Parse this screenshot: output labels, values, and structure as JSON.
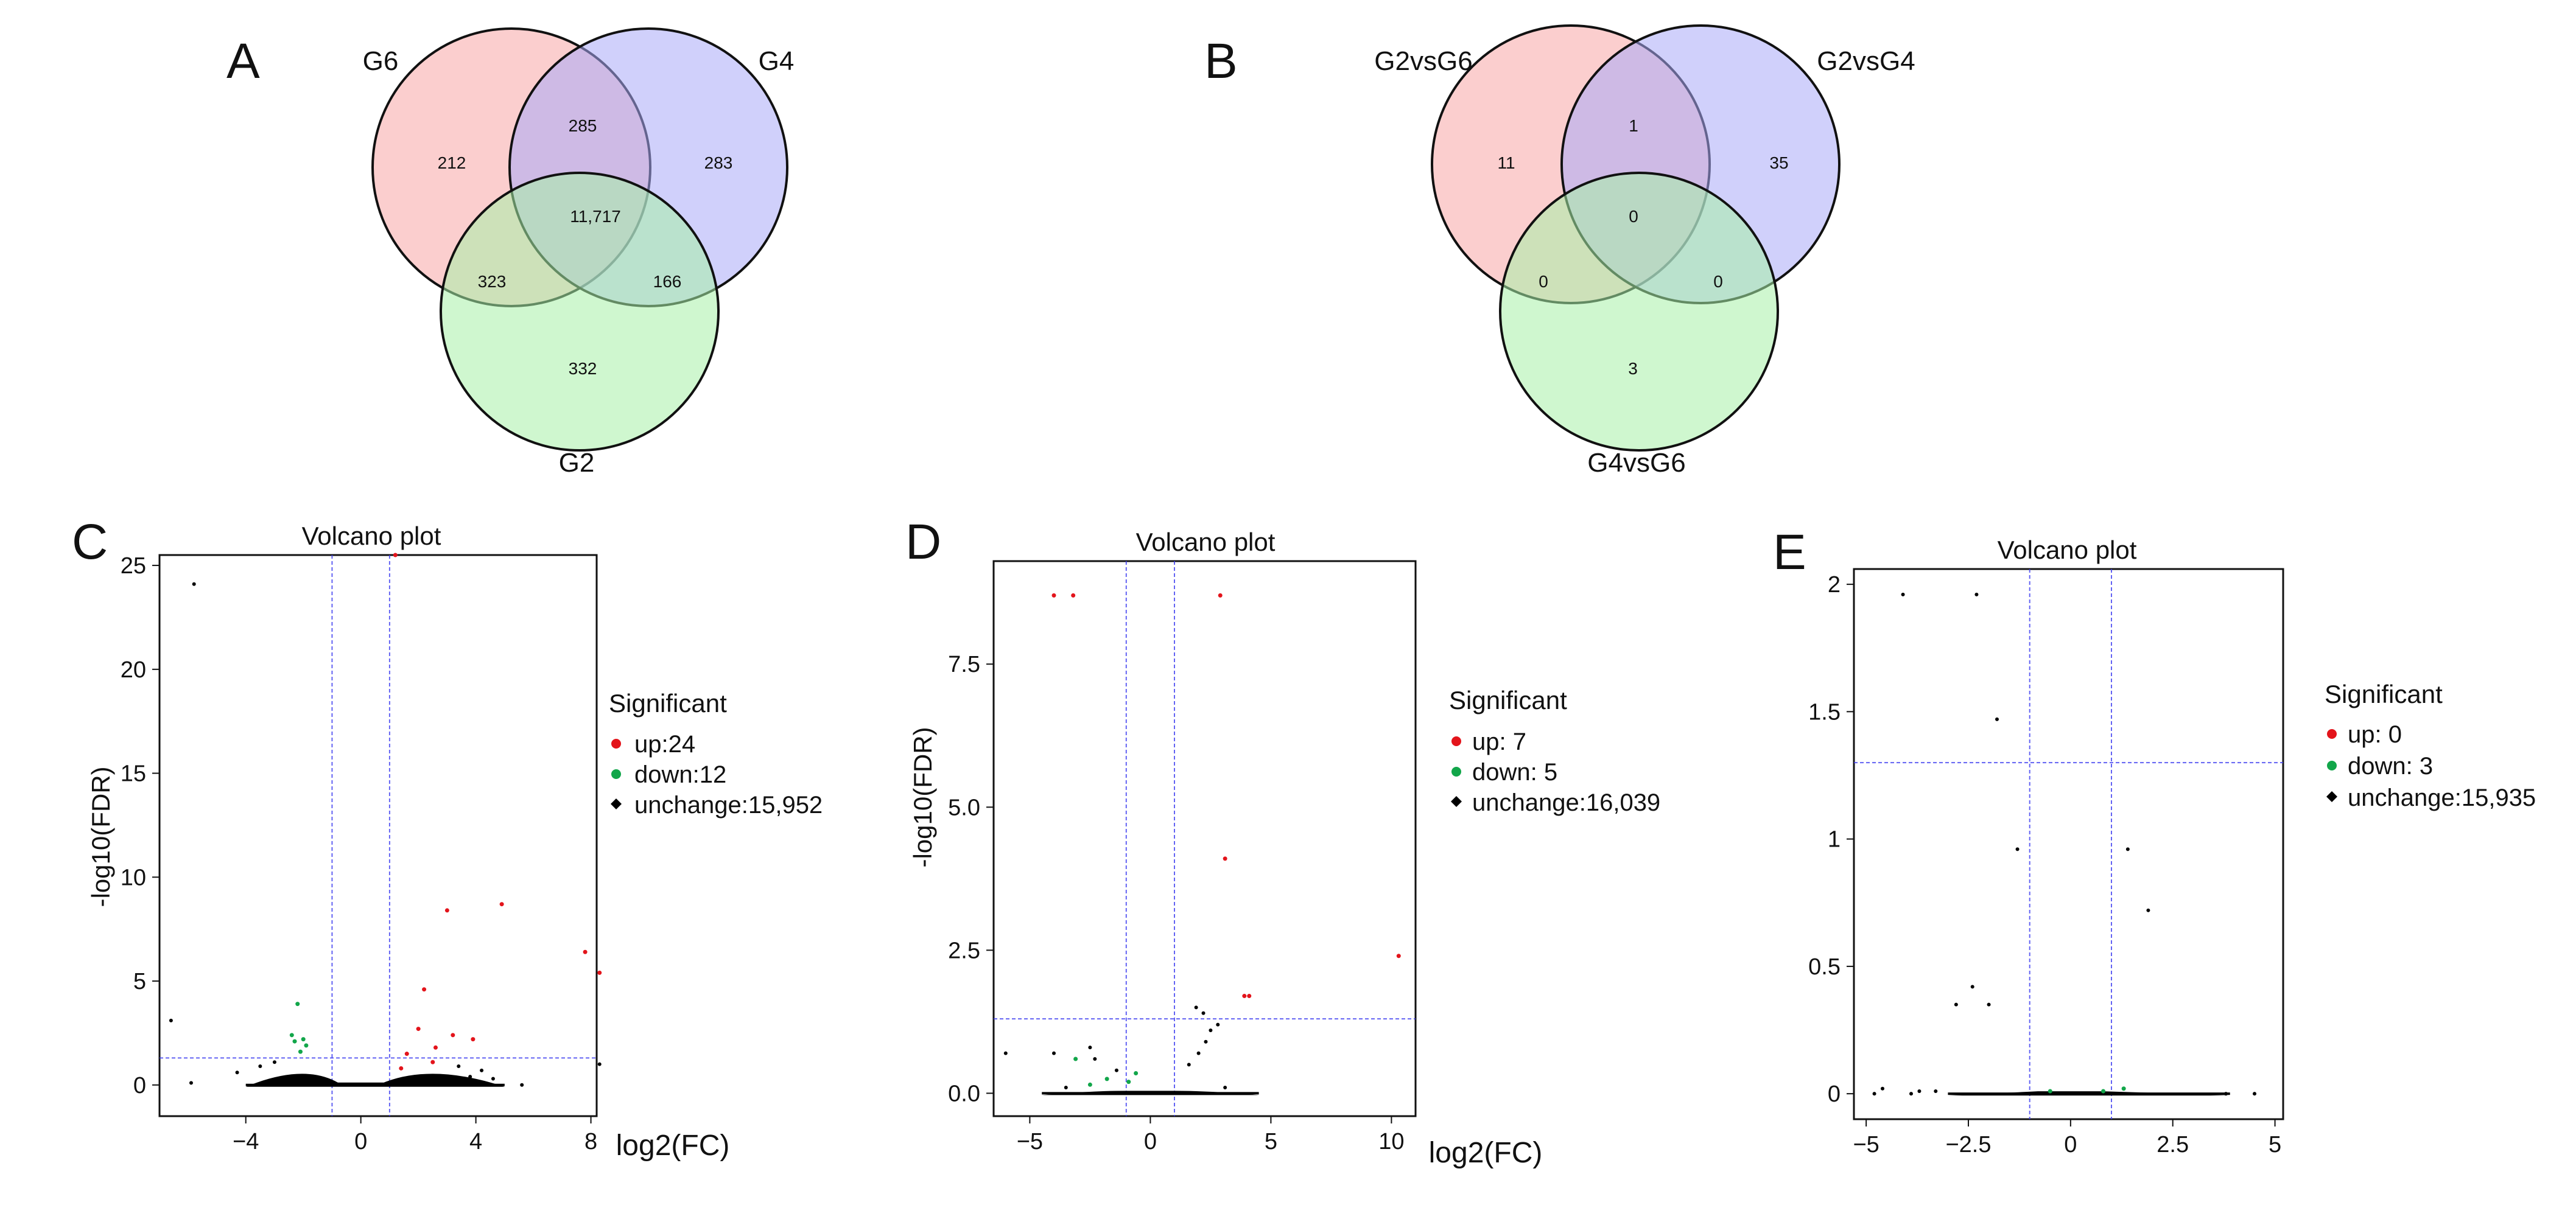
{
  "figure": {
    "panel_letters": [
      "A",
      "B",
      "C",
      "D",
      "E"
    ],
    "colors": {
      "set1": "#f8a6a6",
      "set2": "#a9a9f7",
      "set3": "#a8f0a8",
      "up": "#e3141b",
      "down": "#12a64a",
      "unchange": "#000000",
      "threshold": "#3c3cf0",
      "outline": "#111111"
    }
  },
  "chart_data": [
    {
      "type": "venn",
      "panel": "A",
      "sets": [
        "G6",
        "G4",
        "G2"
      ],
      "regions": {
        "G6_only": "212",
        "G4_only": "283",
        "G2_only": "332",
        "G6_G4": "285",
        "G6_G2": "323",
        "G4_G2": "166",
        "all": "11,717"
      }
    },
    {
      "type": "venn",
      "panel": "B",
      "sets": [
        "G2vsG6",
        "G2vsG4",
        "G4vsG6"
      ],
      "regions": {
        "G6_only": "11",
        "G4_only": "35",
        "G2_only": "3",
        "G6_G4": "1",
        "G6_G2": "0",
        "G4_G2": "0",
        "all": "0"
      }
    },
    {
      "type": "scatter",
      "panel": "C",
      "title": "Volcano plot",
      "xlabel": "log2(FC)",
      "ylabel": "-log10(FDR)",
      "xlim": [
        -7,
        8.2
      ],
      "ylim": [
        -1.5,
        25.5
      ],
      "xticks": [
        -4,
        0,
        4,
        8
      ],
      "yticks": [
        0,
        5,
        10,
        15,
        20,
        25
      ],
      "xtick_labels": [
        "−4",
        "0",
        "4",
        "8"
      ],
      "ytick_labels": [
        "0",
        "5",
        "10",
        "15",
        "20",
        "25"
      ],
      "vlines": [
        -1,
        1
      ],
      "hline": 1.3,
      "legend": {
        "title": "Significant",
        "up": "up:24",
        "down": "down:12",
        "unchange": "unchange:15,952"
      },
      "up": [
        [
          1.2,
          25.5
        ],
        [
          3.0,
          8.4
        ],
        [
          4.9,
          8.7
        ],
        [
          7.8,
          6.4
        ],
        [
          2.2,
          4.6
        ],
        [
          1.6,
          1.5
        ],
        [
          2.6,
          1.8
        ],
        [
          3.2,
          2.4
        ],
        [
          1.4,
          0.8
        ],
        [
          2.0,
          2.7
        ],
        [
          3.9,
          2.2
        ],
        [
          2.5,
          1.1
        ],
        [
          8.3,
          5.4
        ]
      ],
      "down": [
        [
          -2.2,
          3.9
        ],
        [
          -2.0,
          2.2
        ],
        [
          -2.3,
          2.1
        ],
        [
          -2.1,
          1.6
        ],
        [
          -2.4,
          2.4
        ],
        [
          -1.9,
          1.9
        ]
      ],
      "unchange": [
        [
          -5.8,
          24.1
        ],
        [
          -6.6,
          3.1
        ],
        [
          -5.9,
          0.1
        ],
        [
          -4.3,
          0.6
        ],
        [
          -3.5,
          0.9
        ],
        [
          -3.0,
          1.1
        ],
        [
          -2.6,
          0.3
        ],
        [
          5.6,
          0.0
        ],
        [
          4.6,
          0.3
        ],
        [
          4.2,
          0.7
        ],
        [
          3.4,
          0.9
        ],
        [
          3.8,
          0.4
        ],
        [
          8.3,
          1.0
        ]
      ],
      "unchange_band": {
        "x0": -4.0,
        "x1": 5.0,
        "ymax": 1.05
      }
    },
    {
      "type": "scatter",
      "panel": "D",
      "title": "Volcano plot",
      "xlabel": "log2(FC)",
      "ylabel": "-log10(FDR)",
      "xlim": [
        -6.5,
        11
      ],
      "ylim": [
        -0.4,
        9.3
      ],
      "xticks": [
        -5,
        0,
        5,
        10
      ],
      "yticks": [
        0.0,
        2.5,
        5.0,
        7.5
      ],
      "xtick_labels": [
        "−5",
        "0",
        "5",
        "10"
      ],
      "ytick_labels": [
        "0.0",
        "2.5",
        "5.0",
        "7.5"
      ],
      "vlines": [
        -1,
        1
      ],
      "hline": 1.3,
      "legend": {
        "title": "Significant",
        "up": "up: 7",
        "down": "down: 5",
        "unchange": "unchange:16,039"
      },
      "up": [
        [
          -4.0,
          8.7
        ],
        [
          -3.2,
          8.7
        ],
        [
          2.9,
          8.7
        ],
        [
          3.1,
          4.1
        ],
        [
          10.3,
          2.4
        ],
        [
          3.9,
          1.7
        ],
        [
          4.1,
          1.7
        ]
      ],
      "down": [
        [
          -0.9,
          0.2
        ],
        [
          -3.1,
          0.6
        ],
        [
          -1.8,
          0.25
        ],
        [
          -0.6,
          0.35
        ],
        [
          -2.5,
          0.15
        ]
      ],
      "unchange": [
        [
          -6.0,
          0.7
        ],
        [
          -4.0,
          0.7
        ],
        [
          -2.5,
          0.8
        ],
        [
          -2.3,
          0.6
        ],
        [
          -1.4,
          0.4
        ],
        [
          1.9,
          1.5
        ],
        [
          2.2,
          1.4
        ],
        [
          2.5,
          1.1
        ],
        [
          2.3,
          0.9
        ],
        [
          2.0,
          0.7
        ],
        [
          1.6,
          0.5
        ],
        [
          2.8,
          1.2
        ],
        [
          -3.5,
          0.1
        ],
        [
          3.1,
          0.1
        ]
      ],
      "unchange_band": {
        "x0": -4.5,
        "x1": 4.5,
        "ymax": 0.05
      }
    },
    {
      "type": "scatter",
      "panel": "E",
      "title": "Volcano plot",
      "xlabel": "",
      "ylabel": "",
      "xlim": [
        -5.3,
        5.2
      ],
      "ylim": [
        -0.1,
        2.06
      ],
      "xticks": [
        -5,
        -2.5,
        0,
        2.5,
        5
      ],
      "yticks": [
        0,
        0.5,
        1,
        1.5,
        2
      ],
      "xtick_labels": [
        "−5",
        "−2.5",
        "0",
        "2.5",
        "5"
      ],
      "ytick_labels": [
        "0",
        "0.5",
        "1",
        "1.5",
        "2"
      ],
      "vlines": [
        -1,
        1
      ],
      "hline": 1.3,
      "legend": {
        "title": "Significant",
        "up": "up: 0",
        "down": "down: 3",
        "unchange": "unchange:15,935"
      },
      "up": [],
      "down": [
        [
          1.3,
          0.02
        ],
        [
          -0.5,
          0.01
        ],
        [
          0.8,
          0.01
        ]
      ],
      "unchange": [
        [
          -4.1,
          1.96
        ],
        [
          -2.3,
          1.96
        ],
        [
          -1.8,
          1.47
        ],
        [
          -1.3,
          0.96
        ],
        [
          1.4,
          0.96
        ],
        [
          1.9,
          0.72
        ],
        [
          -2.4,
          0.42
        ],
        [
          -2.8,
          0.35
        ],
        [
          -2.0,
          0.35
        ],
        [
          -4.8,
          0.0
        ],
        [
          -4.6,
          0.02
        ],
        [
          -3.7,
          0.01
        ],
        [
          -3.9,
          0.0
        ],
        [
          3.8,
          0.0
        ],
        [
          4.5,
          0.0
        ],
        [
          -3.3,
          0.01
        ]
      ],
      "unchange_band": {
        "x0": -3.0,
        "x1": 3.9,
        "ymax": 0.004
      }
    }
  ]
}
